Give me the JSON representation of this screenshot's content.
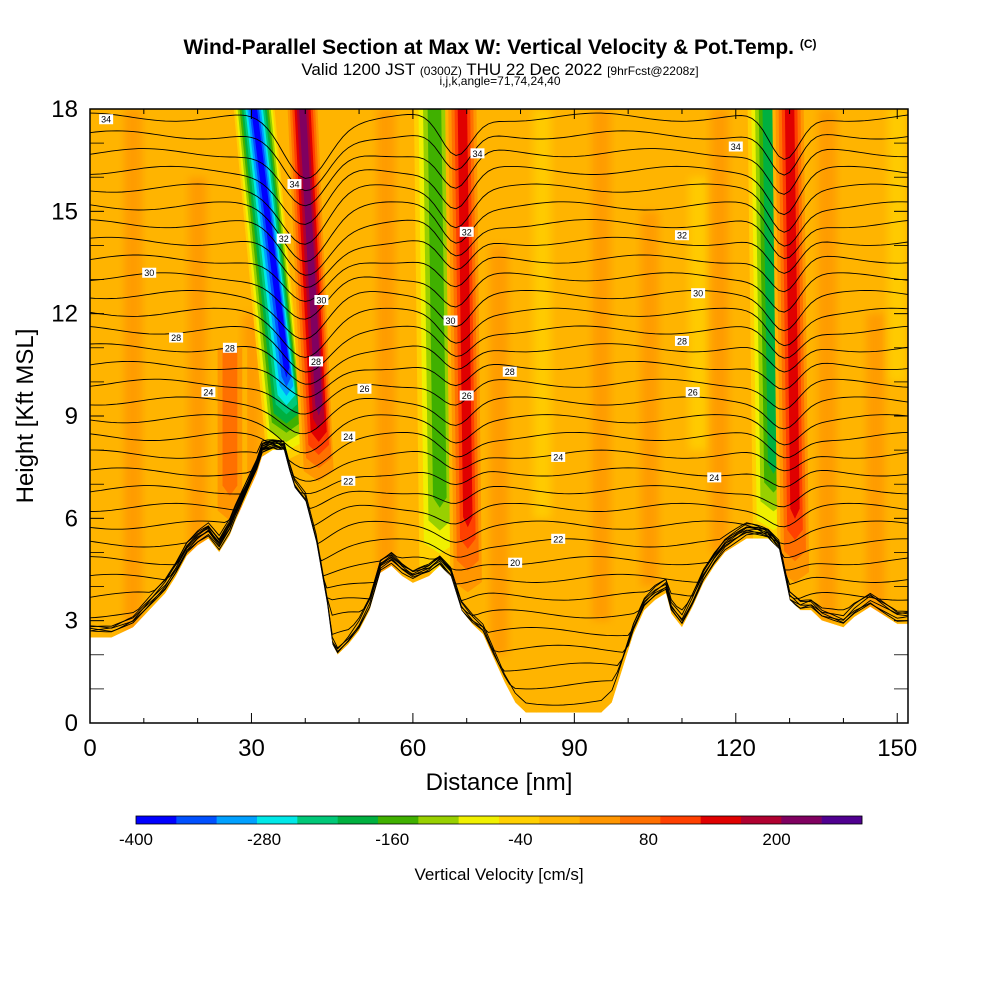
{
  "header": {
    "title": "Wind-Parallel Section at Max W: Vertical Velocity & Pot.Temp.",
    "copyright": "(C)",
    "valid_a": "Valid 1200 JST",
    "valid_small": "(0300Z)",
    "valid_b": "THU 22 Dec 2022",
    "fcst": "[9hrFcst@2208z]",
    "indices": "i,j,k,angle=71,74,24,40"
  },
  "chart_data": {
    "type": "heatmap",
    "xlabel": "Distance [nm]",
    "ylabel": "Height [Kft MSL]",
    "xlim": [
      0,
      152
    ],
    "ylim": [
      0,
      18
    ],
    "x_ticks": [
      0,
      30,
      60,
      90,
      120,
      150
    ],
    "y_ticks": [
      0,
      3,
      6,
      9,
      12,
      15,
      18
    ],
    "colorbar": {
      "label": "Vertical Velocity [cm/s]",
      "min": -400,
      "max": 280,
      "step": 40,
      "tick_values": [
        -400,
        -280,
        -160,
        -40,
        80,
        200
      ],
      "colors": [
        "#0000ff",
        "#0050ff",
        "#00a0ff",
        "#00e8e8",
        "#00c878",
        "#00b040",
        "#40b000",
        "#98d000",
        "#f0f000",
        "#ffd000",
        "#ffb400",
        "#ff9600",
        "#ff7000",
        "#ff4000",
        "#e00000",
        "#b00030",
        "#800060",
        "#500090"
      ]
    },
    "terrain_profile": {
      "x": [
        0,
        4,
        8,
        11,
        14,
        16,
        18,
        20,
        22,
        24,
        26,
        27,
        29,
        31,
        32,
        34,
        36,
        37,
        38,
        40,
        42,
        44,
        45,
        46,
        48,
        50,
        52,
        54,
        56,
        58,
        60,
        63,
        65,
        67,
        69,
        71,
        73,
        75,
        77,
        79,
        81,
        83,
        85,
        87,
        89,
        91,
        93,
        95,
        97,
        99,
        101,
        103,
        105,
        107,
        108,
        110,
        112,
        114,
        116,
        118,
        120,
        122,
        124,
        126,
        128,
        130,
        132,
        134,
        136,
        138,
        140,
        142,
        145,
        148,
        150,
        152
      ],
      "height_kft": [
        2.5,
        2.5,
        2.8,
        3.3,
        3.8,
        4.3,
        4.9,
        5.2,
        5.4,
        5.0,
        5.5,
        5.9,
        6.6,
        7.3,
        7.8,
        8.0,
        8.0,
        7.4,
        6.9,
        6.5,
        5.3,
        3.5,
        2.3,
        2.0,
        2.3,
        2.7,
        3.3,
        4.4,
        4.6,
        4.3,
        4.1,
        4.3,
        4.6,
        4.3,
        3.3,
        2.9,
        2.6,
        1.9,
        1.2,
        0.6,
        0.3,
        0.3,
        0.3,
        0.3,
        0.3,
        0.3,
        0.3,
        0.3,
        0.6,
        1.6,
        2.6,
        3.3,
        3.6,
        3.8,
        3.2,
        2.8,
        3.4,
        4.1,
        4.6,
        5.0,
        5.2,
        5.4,
        5.4,
        5.4,
        5.1,
        3.6,
        3.3,
        3.3,
        3.0,
        2.9,
        2.8,
        3.1,
        3.4,
        3.1,
        2.9,
        2.9
      ]
    },
    "updraft_bands": [
      {
        "x": 42.5,
        "w_cm_s": 280,
        "ytop_kft": 18,
        "ybot_kft": 7.0,
        "tilt_nm": -3
      },
      {
        "x": 70.2,
        "w_cm_s": 180,
        "ytop_kft": 18,
        "ybot_kft": 3.5,
        "tilt_nm": -1
      },
      {
        "x": 131.0,
        "w_cm_s": 200,
        "ytop_kft": 18,
        "ybot_kft": 3.8,
        "tilt_nm": -1
      },
      {
        "x": 26.0,
        "w_cm_s": 120,
        "ytop_kft": 11,
        "ybot_kft": 5.5,
        "tilt_nm": 0
      }
    ],
    "downdraft_bands": [
      {
        "x": 36.5,
        "w_cm_s": -400,
        "ytop_kft": 18,
        "ybot_kft": 8.0,
        "tilt_nm": -6
      },
      {
        "x": 65.0,
        "w_cm_s": -160,
        "ytop_kft": 18,
        "ybot_kft": 4.6,
        "tilt_nm": -1
      },
      {
        "x": 127.0,
        "w_cm_s": -200,
        "ytop_kft": 18,
        "ybot_kft": 5.4,
        "tilt_nm": -1
      }
    ],
    "theta_contour_labels": [
      {
        "text": "34",
        "x": 3,
        "y": 17.7
      },
      {
        "text": "34",
        "x": 38,
        "y": 15.8
      },
      {
        "text": "34",
        "x": 72,
        "y": 16.7
      },
      {
        "text": "34",
        "x": 120,
        "y": 16.9
      },
      {
        "text": "32",
        "x": 36,
        "y": 14.2
      },
      {
        "text": "32",
        "x": 70,
        "y": 14.4
      },
      {
        "text": "32",
        "x": 110,
        "y": 14.3
      },
      {
        "text": "30",
        "x": 11,
        "y": 13.2
      },
      {
        "text": "30",
        "x": 43,
        "y": 12.4
      },
      {
        "text": "30",
        "x": 67,
        "y": 11.8
      },
      {
        "text": "30",
        "x": 113,
        "y": 12.6
      },
      {
        "text": "28",
        "x": 16,
        "y": 11.3
      },
      {
        "text": "28",
        "x": 26,
        "y": 11.0
      },
      {
        "text": "28",
        "x": 42,
        "y": 10.6
      },
      {
        "text": "28",
        "x": 78,
        "y": 10.3
      },
      {
        "text": "28",
        "x": 110,
        "y": 11.2
      },
      {
        "text": "26",
        "x": 51,
        "y": 9.8
      },
      {
        "text": "26",
        "x": 70,
        "y": 9.6
      },
      {
        "text": "26",
        "x": 112,
        "y": 9.7
      },
      {
        "text": "24",
        "x": 22,
        "y": 9.7
      },
      {
        "text": "24",
        "x": 48,
        "y": 8.4
      },
      {
        "text": "24",
        "x": 87,
        "y": 7.8
      },
      {
        "text": "24",
        "x": 116,
        "y": 7.2
      },
      {
        "text": "22",
        "x": 48,
        "y": 7.1
      },
      {
        "text": "22",
        "x": 87,
        "y": 5.4
      },
      {
        "text": "20",
        "x": 79,
        "y": 4.7
      }
    ]
  }
}
